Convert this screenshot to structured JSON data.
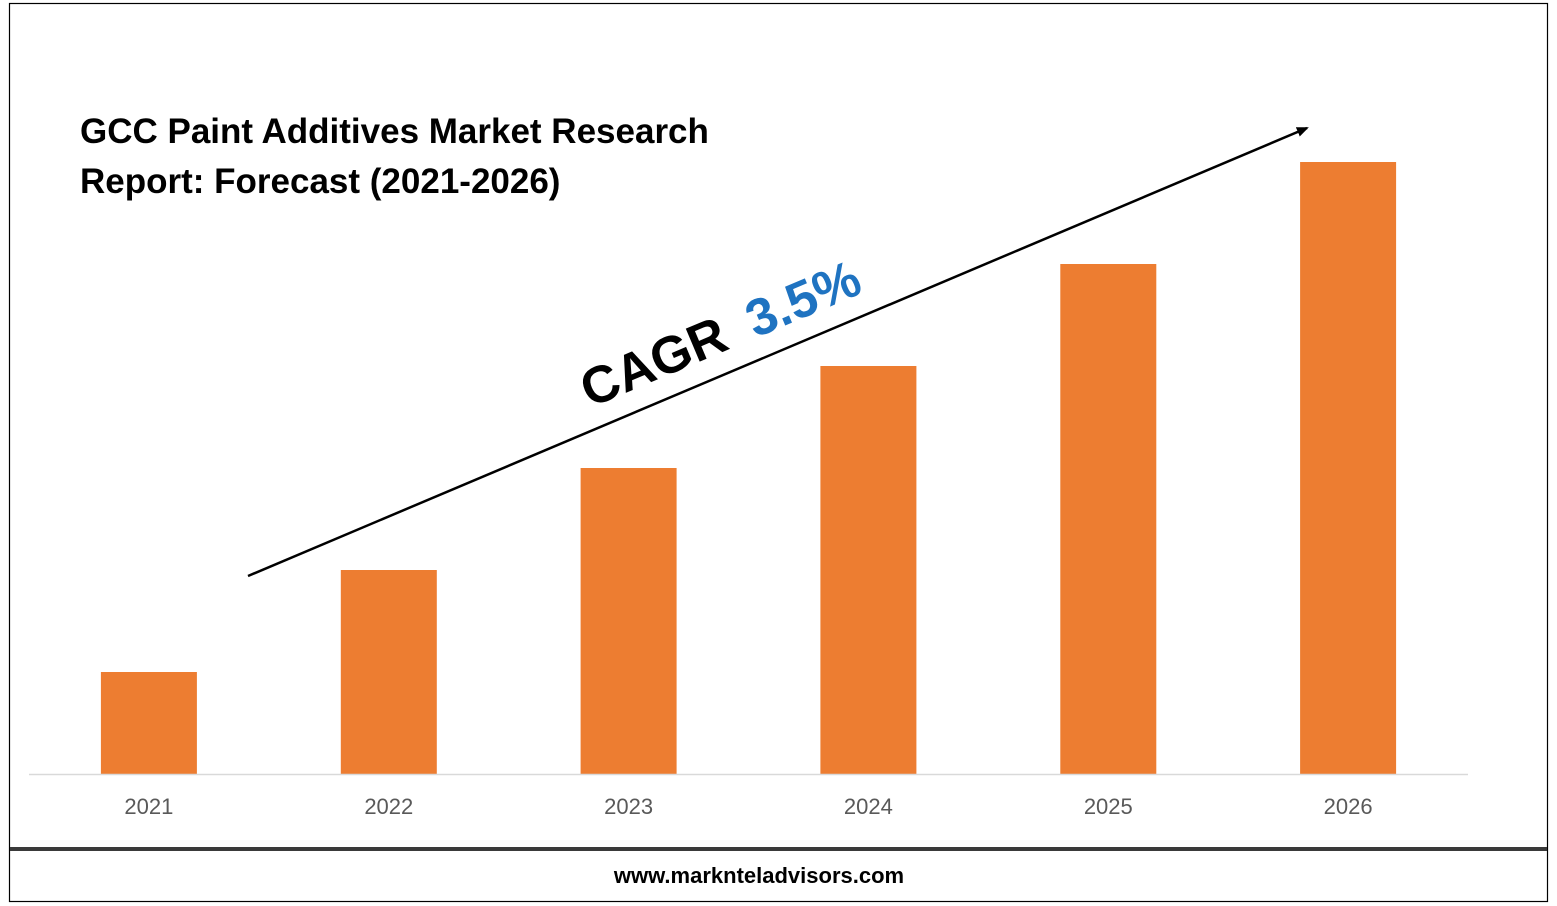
{
  "chart_data": {
    "type": "bar",
    "title_line1": "GCC Paint Additives Market Research",
    "title_line2": "Report: Forecast (2021-2026)",
    "categories": [
      "2021",
      "2022",
      "2023",
      "2024",
      "2025",
      "2026"
    ],
    "values": [
      1.0,
      2.0,
      3.0,
      4.0,
      5.0,
      6.0
    ],
    "ylim": [
      0,
      6.0
    ],
    "grid": false,
    "legend": "none",
    "xlabel": "",
    "ylabel": "",
    "annotation": {
      "label": "CAGR",
      "value": "3.5%"
    },
    "colors": {
      "bar": "#ED7D31",
      "cagr_label": "#000000",
      "cagr_value": "#1F73C1",
      "axis": "#D9D9D9",
      "tick_label": "#595959"
    }
  },
  "footer": {
    "website": "www.marknteladvisors.com"
  }
}
